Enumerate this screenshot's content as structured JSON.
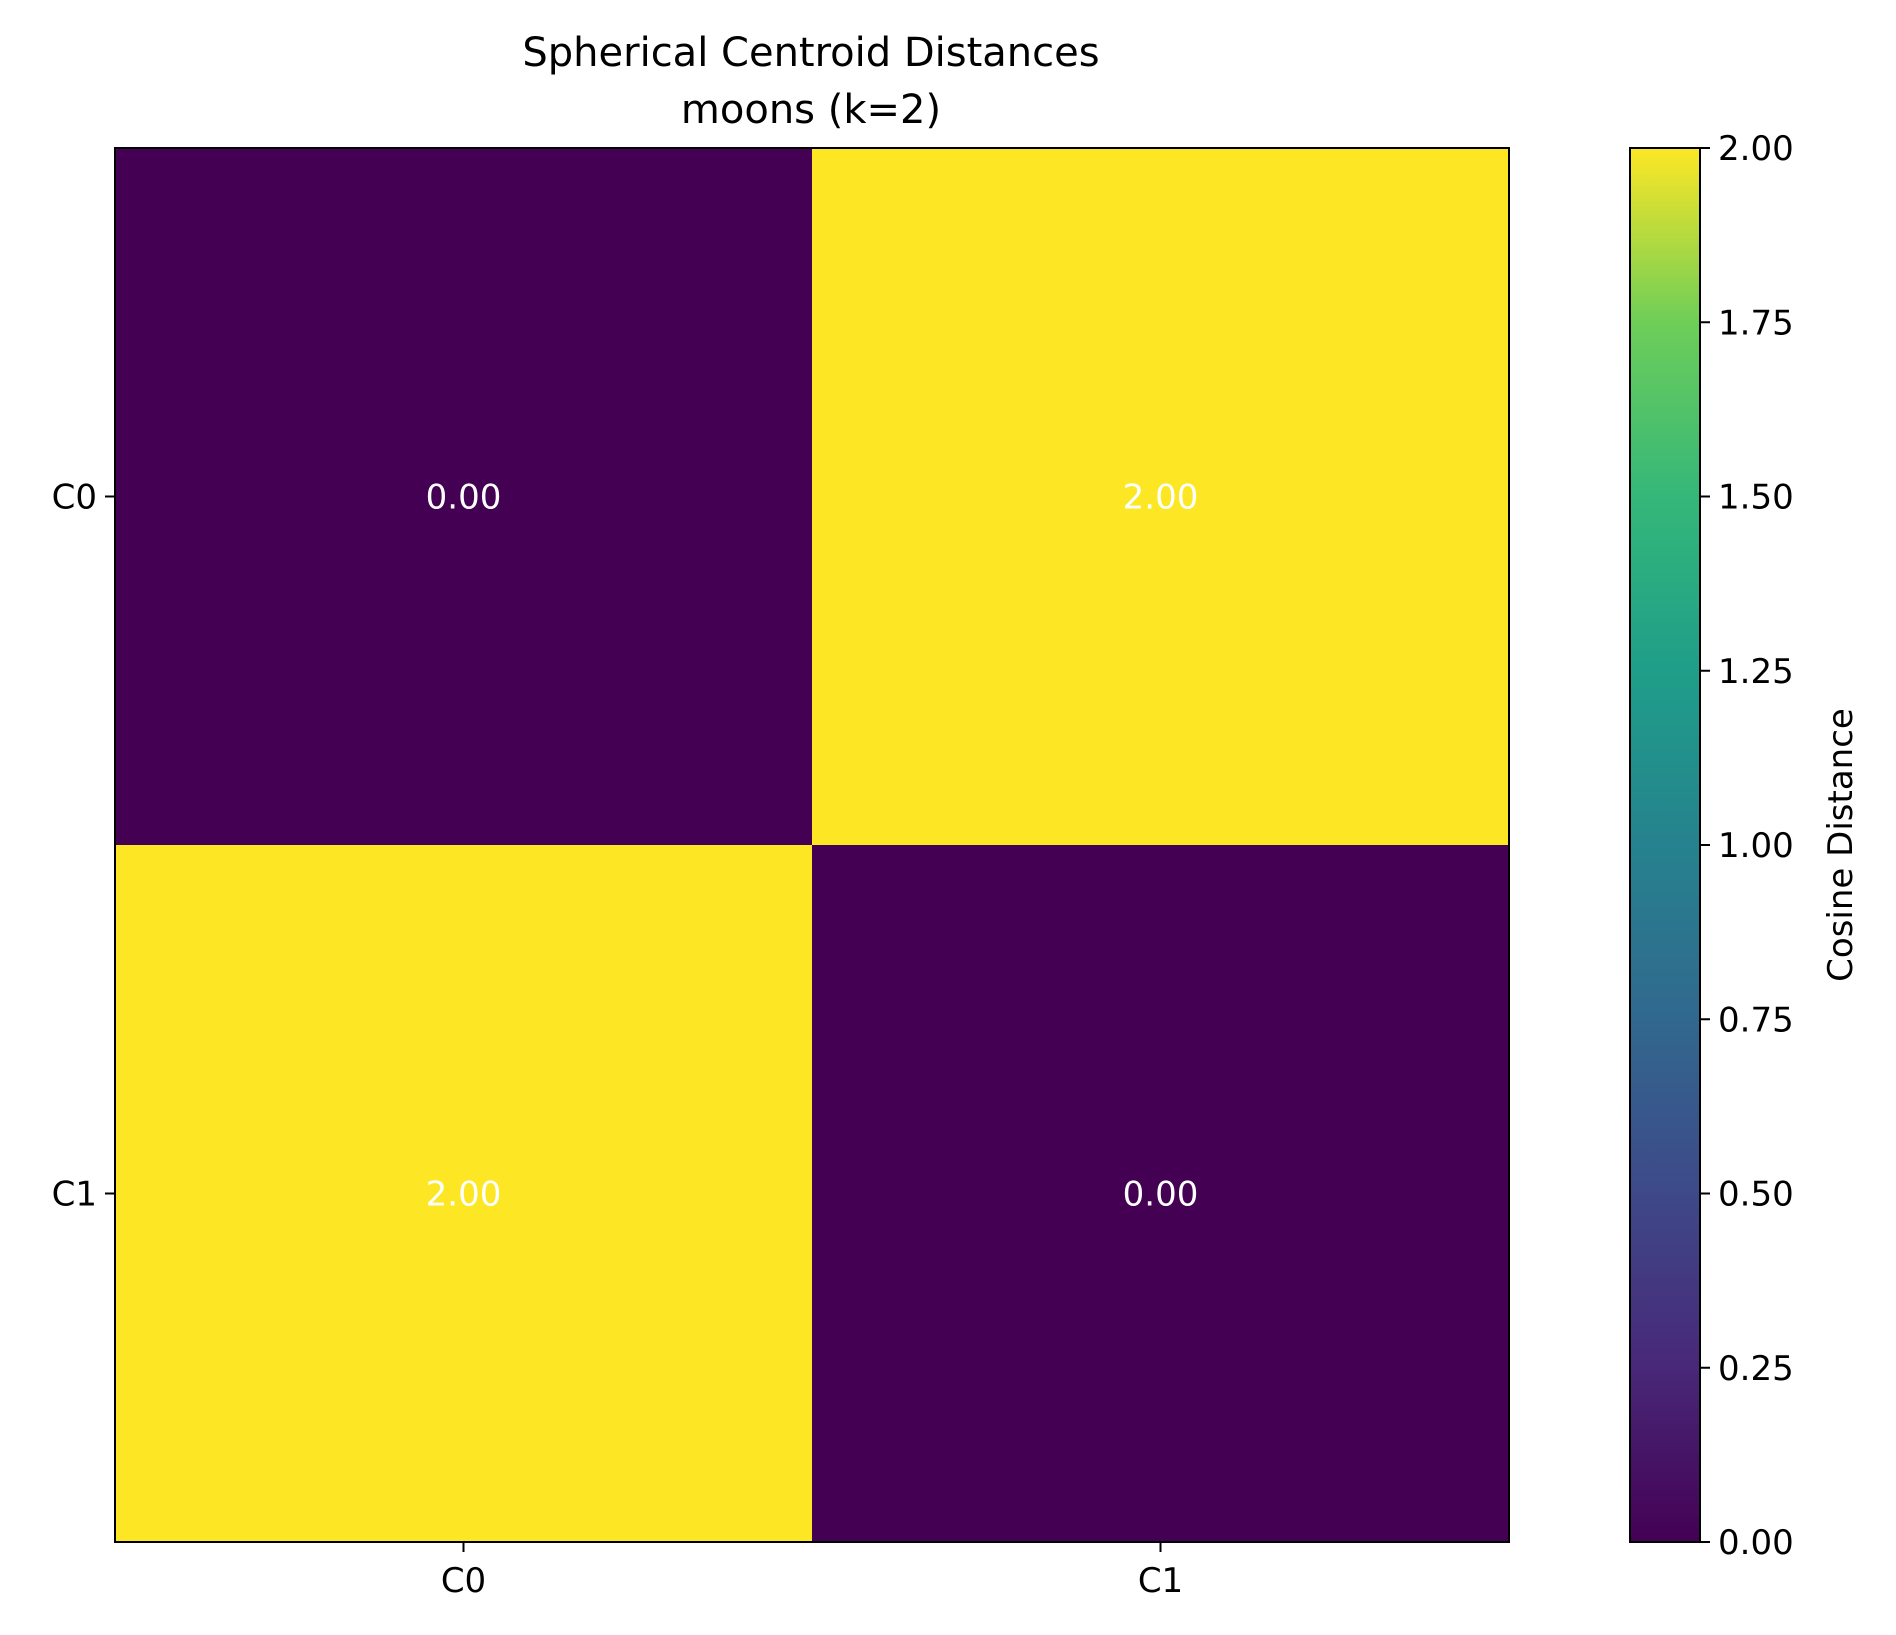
{
  "chart_data": {
    "type": "heatmap",
    "title": "Spherical Centroid Distances",
    "subtitle": "moons (k=2)",
    "rows": [
      "C0",
      "C1"
    ],
    "columns": [
      "C0",
      "C1"
    ],
    "values": [
      [
        0.0,
        2.0
      ],
      [
        2.0,
        0.0
      ]
    ],
    "cell_labels": [
      [
        "0.00",
        "2.00"
      ],
      [
        "2.00",
        "0.00"
      ]
    ],
    "colormap": "viridis",
    "vmin": 0.0,
    "vmax": 2.0,
    "colorbar": {
      "label": "Cosine Distance",
      "ticks": [
        0.0,
        0.25,
        0.5,
        0.75,
        1.0,
        1.25,
        1.5,
        1.75,
        2.0
      ],
      "tick_labels": [
        "0.00",
        "0.25",
        "0.50",
        "0.75",
        "1.00",
        "1.25",
        "1.50",
        "1.75",
        "2.00"
      ]
    },
    "annotation_color": "#ffffff",
    "grid": false
  }
}
